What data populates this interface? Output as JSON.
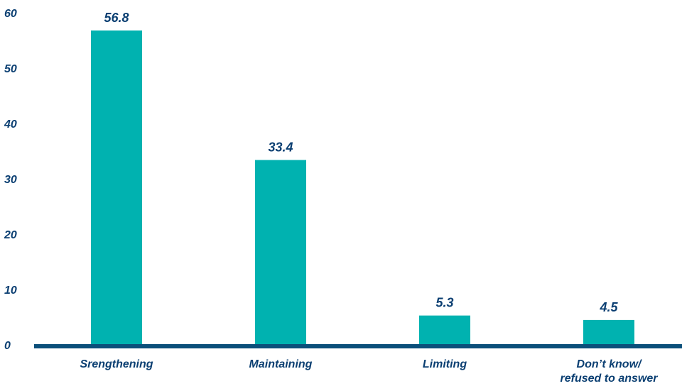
{
  "chart_data": {
    "type": "bar",
    "categories": [
      [
        "Srengthening"
      ],
      [
        "Maintaining"
      ],
      [
        "Limiting"
      ],
      [
        "Don’t know/",
        "refused to answer"
      ]
    ],
    "values": [
      56.8,
      33.4,
      5.3,
      4.5
    ],
    "value_labels": [
      "56.8",
      "33.4",
      "5.3",
      "4.5"
    ],
    "y_ticks": [
      "0",
      "10",
      "20",
      "30",
      "40",
      "50",
      "60"
    ],
    "ylim": [
      0,
      60
    ],
    "grid": false,
    "legend": "none",
    "colors": {
      "bar": "#00b2b0",
      "axis": "#0b4f7a",
      "text": "#0b3f72"
    }
  }
}
